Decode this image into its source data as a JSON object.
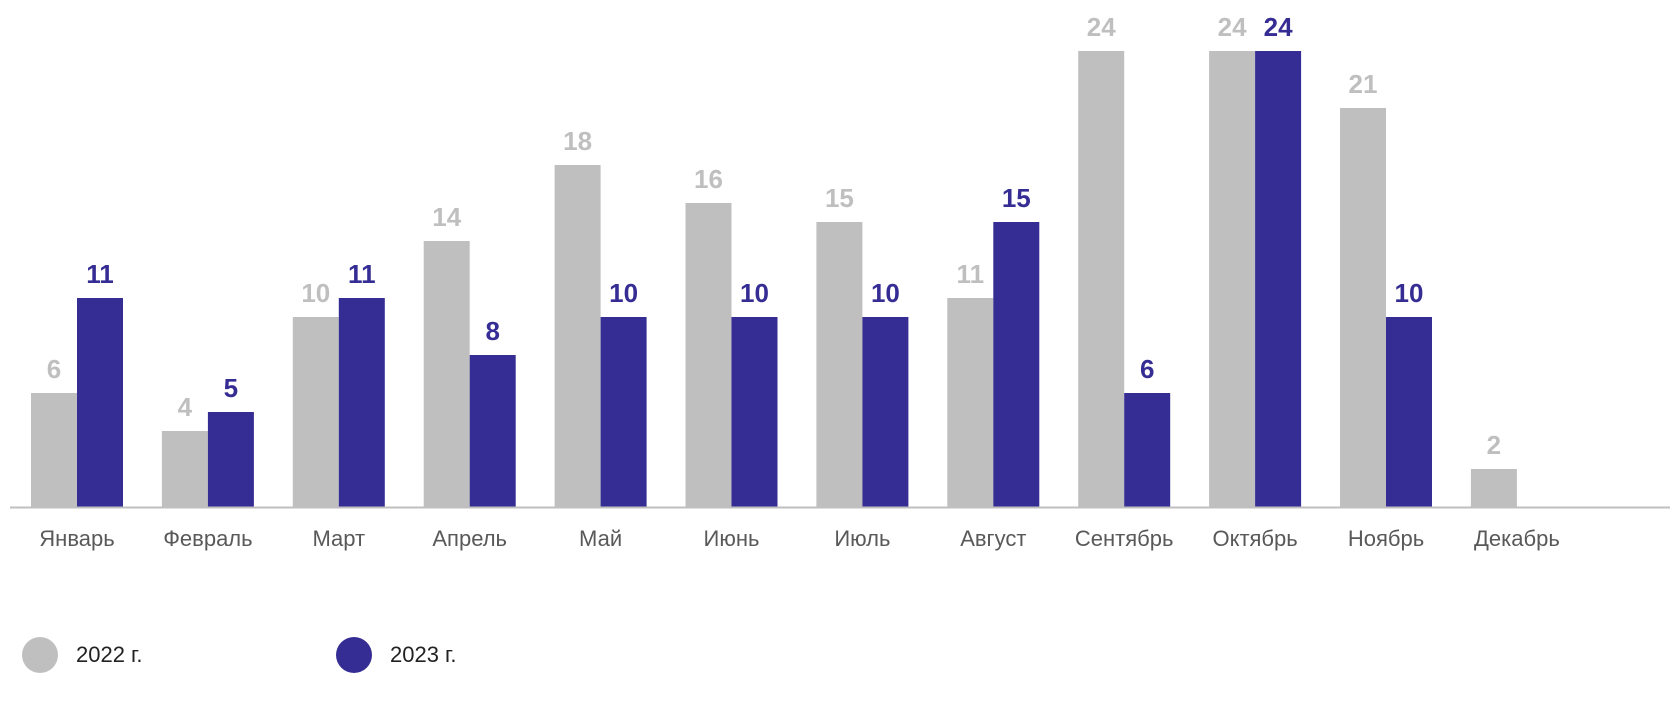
{
  "colors": {
    "y2022": "#bfbfbf",
    "y2023": "#362d94",
    "axis": "#bfbfbf",
    "tick": "#595959"
  },
  "legend": {
    "items": [
      {
        "label": "2022 г.",
        "color": "#bfbfbf"
      },
      {
        "label": "2023 г.",
        "color": "#362d94"
      }
    ]
  },
  "chart_data": {
    "type": "bar",
    "categories": [
      "Январь",
      "Февраль",
      "Март",
      "Апрель",
      "Май",
      "Июнь",
      "Июль",
      "Август",
      "Сентябрь",
      "Октябрь",
      "Ноябрь",
      "Декабрь"
    ],
    "series": [
      {
        "name": "2022 г.",
        "values": [
          6,
          4,
          10,
          14,
          18,
          16,
          15,
          11,
          24,
          24,
          21,
          2
        ]
      },
      {
        "name": "2023 г.",
        "values": [
          11,
          5,
          11,
          8,
          10,
          10,
          10,
          15,
          6,
          24,
          10,
          null
        ]
      }
    ],
    "ylim": [
      0,
      24
    ],
    "grid": false,
    "legend_position": "bottom-left",
    "data_labels": true
  }
}
